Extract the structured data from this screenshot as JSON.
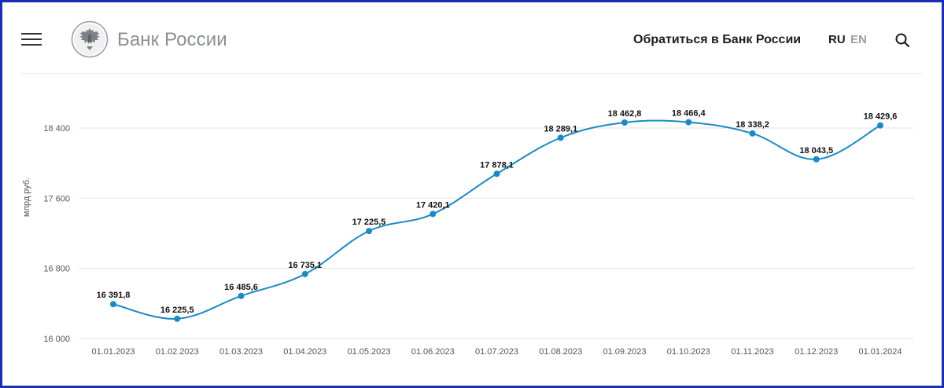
{
  "header": {
    "logo_text": "Банк России",
    "contact_label": "Обратиться в Банк России",
    "lang_ru": "RU",
    "lang_en": "EN"
  },
  "icons": {
    "menu": "hamburger-menu-icon",
    "logo": "double-headed-eagle-emblem",
    "search": "search-icon"
  },
  "colors": {
    "line": "#1b8ac4",
    "grid": "#e3e3e3",
    "frame": "#1a2fb0"
  },
  "chart_data": {
    "type": "line",
    "title": "",
    "xlabel": "",
    "ylabel": "млрд руб.",
    "ylim": [
      16000,
      18800
    ],
    "yticks": [
      16000,
      16800,
      17600,
      18400
    ],
    "ytick_labels": [
      "16 000",
      "16 800",
      "17 600",
      "18 400"
    ],
    "categories": [
      "01.01.2023",
      "01.02.2023",
      "01.03.2023",
      "01.04.2023",
      "01.05.2023",
      "01.06.2023",
      "01.07.2023",
      "01.08.2023",
      "01.09.2023",
      "01.10.2023",
      "01.11.2023",
      "01.12.2023",
      "01.01.2024"
    ],
    "values": [
      16391.8,
      16225.5,
      16485.6,
      16735.1,
      17225.5,
      17420.1,
      17878.1,
      18289.1,
      18462.8,
      18466.4,
      18338.2,
      18043.5,
      18429.6
    ],
    "value_labels": [
      "16 391,8",
      "16 225,5",
      "16 485,6",
      "16 735,1",
      "17 225,5",
      "17 420,1",
      "17 878,1",
      "18 289,1",
      "18 462,8",
      "18 466,4",
      "18 338,2",
      "18 043,5",
      "18 429,6"
    ],
    "grid": true,
    "legend": "none"
  }
}
